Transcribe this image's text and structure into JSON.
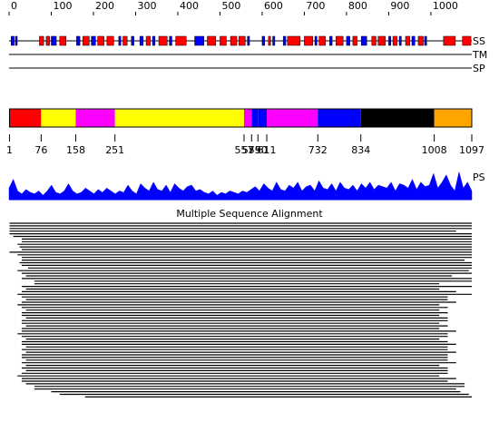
{
  "ruler": {
    "ticks": [
      0,
      100,
      200,
      300,
      400,
      500,
      600,
      700,
      800,
      900,
      1000
    ],
    "length": 1097
  },
  "tracks": {
    "ss_label": "SS",
    "tm_label": "TM",
    "sp_label": "SP",
    "ps_label": "PS"
  },
  "ss_elements": {
    "helix_color": "#ff0000",
    "strand_color": "#0000ff",
    "helices": [
      [
        72,
        82
      ],
      [
        88,
        96
      ],
      [
        120,
        135
      ],
      [
        175,
        190
      ],
      [
        210,
        225
      ],
      [
        232,
        248
      ],
      [
        270,
        280
      ],
      [
        325,
        335
      ],
      [
        355,
        375
      ],
      [
        395,
        420
      ],
      [
        470,
        490
      ],
      [
        500,
        515
      ],
      [
        525,
        540
      ],
      [
        545,
        560
      ],
      [
        615,
        620
      ],
      [
        660,
        690
      ],
      [
        700,
        720
      ],
      [
        735,
        750
      ],
      [
        775,
        792
      ],
      [
        815,
        825
      ],
      [
        860,
        870
      ],
      [
        875,
        892
      ],
      [
        910,
        920
      ],
      [
        940,
        950
      ],
      [
        970,
        982
      ],
      [
        1030,
        1058
      ],
      [
        1075,
        1095
      ]
    ],
    "strands": [
      [
        5,
        12
      ],
      [
        15,
        18
      ],
      [
        100,
        112
      ],
      [
        160,
        168
      ],
      [
        195,
        205
      ],
      [
        260,
        265
      ],
      [
        290,
        296
      ],
      [
        310,
        318
      ],
      [
        340,
        346
      ],
      [
        380,
        386
      ],
      [
        440,
        462
      ],
      [
        565,
        570
      ],
      [
        600,
        606
      ],
      [
        625,
        630
      ],
      [
        650,
        656
      ],
      [
        725,
        730
      ],
      [
        760,
        766
      ],
      [
        800,
        808
      ],
      [
        835,
        848
      ],
      [
        900,
        905
      ],
      [
        925,
        930
      ],
      [
        955,
        962
      ],
      [
        985,
        990
      ]
    ]
  },
  "domains": [
    {
      "start": 1,
      "end": 76,
      "color": "#ff0000"
    },
    {
      "start": 76,
      "end": 158,
      "color": "#ffff00"
    },
    {
      "start": 158,
      "end": 251,
      "color": "#ff00ff"
    },
    {
      "start": 251,
      "end": 557,
      "color": "#ffff00"
    },
    {
      "start": 557,
      "end": 575,
      "color": "#ff00ff"
    },
    {
      "start": 575,
      "end": 590,
      "color": "#0000ff"
    },
    {
      "start": 590,
      "end": 611,
      "color": "#0000ff"
    },
    {
      "start": 611,
      "end": 732,
      "color": "#ff00ff"
    },
    {
      "start": 732,
      "end": 834,
      "color": "#0000ff"
    },
    {
      "start": 834,
      "end": 1008,
      "color": "#000000"
    },
    {
      "start": 1008,
      "end": 1097,
      "color": "#ffa500"
    }
  ],
  "domain_boundaries": [
    1,
    76,
    158,
    251,
    557,
    575,
    590,
    611,
    732,
    834,
    1008,
    1097
  ],
  "ps_profile": {
    "color": "#0000ff",
    "values": [
      0.4,
      0.7,
      0.3,
      0.2,
      0.35,
      0.25,
      0.2,
      0.3,
      0.15,
      0.3,
      0.5,
      0.25,
      0.2,
      0.3,
      0.55,
      0.3,
      0.2,
      0.25,
      0.4,
      0.3,
      0.2,
      0.35,
      0.25,
      0.4,
      0.3,
      0.2,
      0.3,
      0.25,
      0.5,
      0.3,
      0.2,
      0.55,
      0.4,
      0.3,
      0.6,
      0.35,
      0.3,
      0.5,
      0.25,
      0.55,
      0.4,
      0.3,
      0.45,
      0.5,
      0.3,
      0.35,
      0.25,
      0.2,
      0.3,
      0.15,
      0.25,
      0.2,
      0.3,
      0.25,
      0.2,
      0.3,
      0.25,
      0.35,
      0.45,
      0.3,
      0.55,
      0.4,
      0.3,
      0.6,
      0.35,
      0.3,
      0.5,
      0.4,
      0.6,
      0.3,
      0.45,
      0.5,
      0.3,
      0.65,
      0.4,
      0.35,
      0.55,
      0.3,
      0.6,
      0.4,
      0.35,
      0.5,
      0.3,
      0.55,
      0.4,
      0.6,
      0.35,
      0.5,
      0.45,
      0.4,
      0.6,
      0.3,
      0.55,
      0.5,
      0.4,
      0.7,
      0.35,
      0.6,
      0.45,
      0.5,
      0.9,
      0.4,
      0.6,
      0.85,
      0.5,
      0.3,
      0.95,
      0.4,
      0.6,
      0.3
    ]
  },
  "msa": {
    "title": "Multiple Sequence Alignment",
    "alignments": [
      [
        1,
        1097
      ],
      [
        1,
        1097
      ],
      [
        1,
        1097
      ],
      [
        1,
        1060
      ],
      [
        1,
        1097
      ],
      [
        10,
        1097
      ],
      [
        30,
        1097
      ],
      [
        30,
        1097
      ],
      [
        20,
        1097
      ],
      [
        25,
        1097
      ],
      [
        30,
        1097
      ],
      [
        1,
        1097
      ],
      [
        20,
        1097
      ],
      [
        30,
        1097
      ],
      [
        30,
        1080
      ],
      [
        25,
        1097
      ],
      [
        30,
        1097
      ],
      [
        45,
        1097
      ],
      [
        20,
        1090
      ],
      [
        30,
        1097
      ],
      [
        40,
        1050
      ],
      [
        30,
        1097
      ],
      [
        60,
        1097
      ],
      [
        60,
        1020
      ],
      [
        30,
        1097
      ],
      [
        40,
        1020
      ],
      [
        30,
        1060
      ],
      [
        20,
        1097
      ],
      [
        30,
        1040
      ],
      [
        40,
        1040
      ],
      [
        30,
        1060
      ],
      [
        20,
        1020
      ],
      [
        30,
        1040
      ],
      [
        40,
        1020
      ],
      [
        30,
        1040
      ],
      [
        30,
        1020
      ],
      [
        40,
        1040
      ],
      [
        30,
        1040
      ],
      [
        30,
        1020
      ],
      [
        40,
        1040
      ],
      [
        30,
        1020
      ],
      [
        30,
        1060
      ],
      [
        20,
        1040
      ],
      [
        30,
        1040
      ],
      [
        40,
        1020
      ],
      [
        30,
        1040
      ],
      [
        30,
        1060
      ],
      [
        40,
        1040
      ],
      [
        30,
        1040
      ],
      [
        40,
        1060
      ],
      [
        30,
        1040
      ],
      [
        30,
        1040
      ],
      [
        40,
        1040
      ],
      [
        30,
        1060
      ],
      [
        40,
        1020
      ],
      [
        30,
        1040
      ],
      [
        40,
        1040
      ],
      [
        30,
        1040
      ],
      [
        20,
        1020
      ],
      [
        30,
        1060
      ],
      [
        30,
        1040
      ],
      [
        40,
        1080
      ],
      [
        60,
        1080
      ],
      [
        60,
        1060
      ],
      [
        100,
        1070
      ],
      [
        120,
        1090
      ],
      [
        180,
        1097
      ]
    ]
  }
}
